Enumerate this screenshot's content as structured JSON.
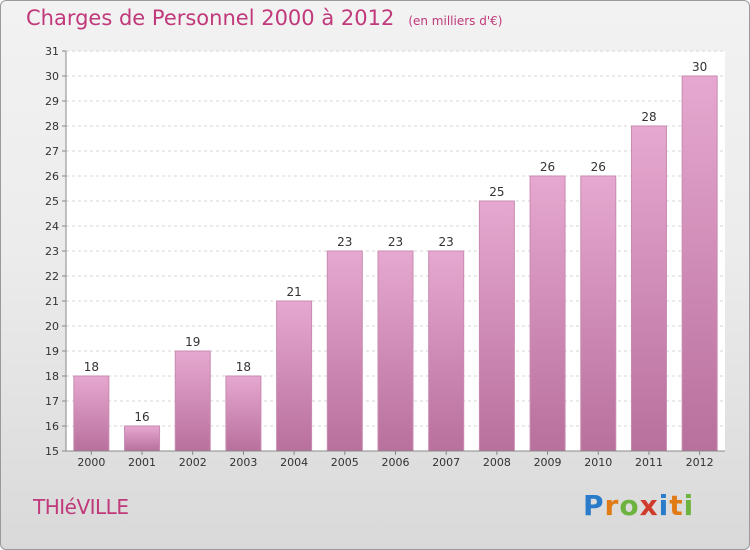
{
  "title": "Charges de Personnel 2000 à 2012",
  "subtitle": "(en milliers d'€)",
  "commune": "THIéVILLE",
  "logo": {
    "text": "Proxiti",
    "parts": [
      "P",
      "r",
      "o",
      "x",
      "i",
      "t",
      "i"
    ]
  },
  "colors": {
    "title": "#c0397a",
    "bar_top": "#e6a8d0",
    "bar_bottom": "#b8709c",
    "bar_border": "#c98bb2"
  },
  "chart_data": {
    "type": "bar",
    "categories": [
      "2000",
      "2001",
      "2002",
      "2003",
      "2004",
      "2005",
      "2006",
      "2007",
      "2008",
      "2009",
      "2010",
      "2011",
      "2012"
    ],
    "values": [
      18,
      16,
      19,
      18,
      21,
      23,
      23,
      23,
      25,
      26,
      26,
      28,
      30
    ],
    "title": "Charges de Personnel 2000 à 2012",
    "subtitle": "(en milliers d'€)",
    "ylim": [
      15,
      31
    ],
    "yticks": [
      15,
      16,
      17,
      18,
      19,
      20,
      21,
      22,
      23,
      24,
      25,
      26,
      27,
      28,
      29,
      30,
      31
    ],
    "grid": true,
    "data_labels": true
  }
}
